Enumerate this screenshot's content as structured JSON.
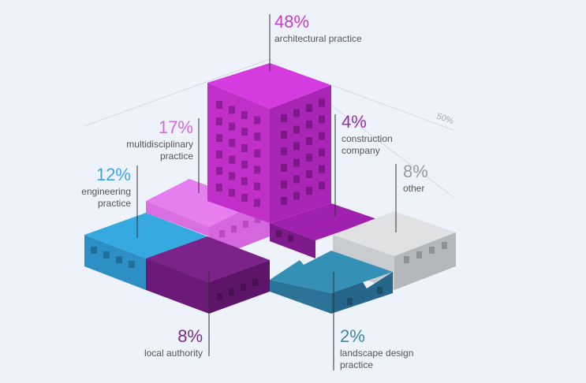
{
  "chart_data": {
    "type": "infographic",
    "categories": [
      "architectural practice",
      "multidisciplinary practice",
      "engineering practice",
      "construction company",
      "other",
      "local authority",
      "landscape design practice"
    ],
    "values": [
      48,
      17,
      12,
      4,
      8,
      8,
      2
    ],
    "value_labels": [
      "48%",
      "17%",
      "12%",
      "4%",
      "8%",
      "8%",
      "2%"
    ],
    "colors": [
      "#c53ec9",
      "#d36ad9",
      "#41a5dc",
      "#9b2aa9",
      "#9a9c9e",
      "#7a2a86",
      "#3a8aa5"
    ],
    "yticks": [
      {
        "value": 50,
        "label": "50%"
      }
    ]
  }
}
